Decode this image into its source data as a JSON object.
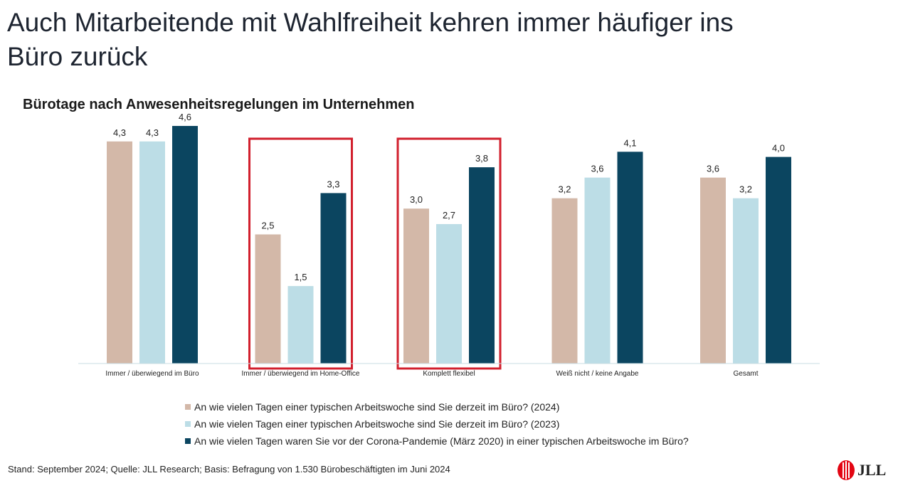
{
  "page": {
    "title": "Auch Mitarbeitende mit Wahlfreiheit kehren immer häufiger ins Büro zurück",
    "footnote": "Stand: September 2024; Quelle: JLL Research; Basis: Befragung von 1.530 Bürobeschäftigten im Juni 2024",
    "logo_text": "JLL"
  },
  "colors": {
    "series_2024": "#d3b8a8",
    "series_2023": "#bcdde6",
    "series_pre_pandemic": "#0b4560",
    "highlight_box": "#d2202e",
    "axis": "#c9dde3",
    "logo_red": "#e30613"
  },
  "chart_data": {
    "type": "bar",
    "title": "Bürotage nach Anwesenheitsregelungen im Unternehmen",
    "xlabel": "",
    "ylabel": "",
    "ylim": [
      0,
      5
    ],
    "grid": false,
    "legend_position": "bottom",
    "categories": [
      "Immer / überwiegend im Büro",
      "Immer / überwiegend im Home-Office",
      "Komplett flexibel",
      "Weiß nicht / keine Angabe",
      "Gesamt"
    ],
    "highlighted_categories": [
      1,
      2
    ],
    "series": [
      {
        "name": "An wie vielen Tagen einer typischen Arbeitswoche sind Sie derzeit im Büro? (2024)",
        "values": [
          4.3,
          2.5,
          3.0,
          3.2,
          3.6
        ],
        "labels": [
          "4,3",
          "2,5",
          "3,0",
          "3,2",
          "3,6"
        ]
      },
      {
        "name": "An wie vielen Tagen einer typischen Arbeitswoche sind Sie derzeit im Büro? (2023)",
        "values": [
          4.3,
          1.5,
          2.7,
          3.6,
          3.2
        ],
        "labels": [
          "4,3",
          "1,5",
          "2,7",
          "3,6",
          "3,2"
        ]
      },
      {
        "name": "An wie vielen Tagen waren Sie vor der Corona-Pandemie (März 2020) in einer typischen Arbeitswoche im Büro?",
        "values": [
          4.6,
          3.3,
          3.8,
          4.1,
          4.0
        ],
        "labels": [
          "4,6",
          "3,3",
          "3,8",
          "4,1",
          "4,0"
        ]
      }
    ]
  }
}
